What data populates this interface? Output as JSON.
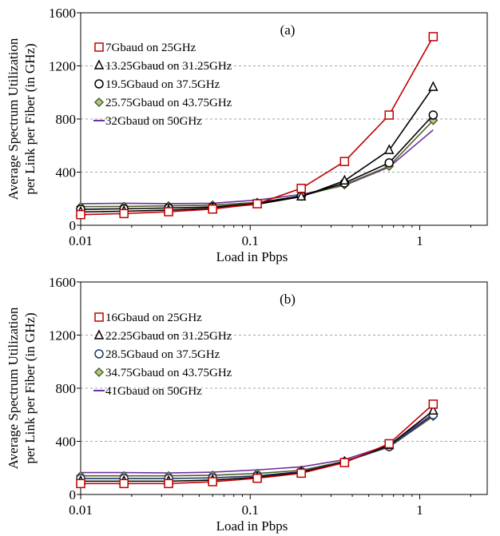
{
  "chart_data": [
    {
      "type": "line",
      "panel_label": "(a)",
      "xlabel": "Load in Pbps",
      "ylabel_line1": "Average Spectrum Utilization",
      "ylabel_line2": "per Link per Fiber (in GHz)",
      "x_scale": "log",
      "xlim": [
        0.01,
        2.5
      ],
      "ylim": [
        0,
        1600
      ],
      "x_ticks": [
        {
          "value": 0.01,
          "label": "0.01"
        },
        {
          "value": 0.1,
          "label": "0.1"
        },
        {
          "value": 1,
          "label": "1"
        }
      ],
      "y_ticks": [
        {
          "value": 0,
          "label": "0"
        },
        {
          "value": 400,
          "label": "400"
        },
        {
          "value": 800,
          "label": "800"
        },
        {
          "value": 1200,
          "label": "1200"
        },
        {
          "value": 1600,
          "label": "1600"
        }
      ],
      "grid": "horizontal-dashed",
      "legend_placement": "top-left",
      "x": [
        0.01,
        0.018,
        0.033,
        0.06,
        0.11,
        0.2,
        0.36,
        0.66,
        1.2
      ],
      "series": [
        {
          "name": "7Gbaud on 25GHz",
          "color": "#c00000",
          "marker": "square",
          "values": [
            80,
            88,
            102,
            122,
            162,
            278,
            480,
            830,
            1420
          ]
        },
        {
          "name": "13.25Gbaud on 31.25GHz",
          "color": "#000000",
          "marker": "triangle",
          "values": [
            100,
            106,
            114,
            128,
            158,
            215,
            335,
            565,
            1040
          ]
        },
        {
          "name": "19.5Gbaud on 37.5GHz",
          "color": "#000000",
          "marker": "circle",
          "values": [
            120,
            124,
            130,
            138,
            165,
            220,
            318,
            470,
            830
          ]
        },
        {
          "name": "25.75Gbaud on 43.75GHz",
          "color": "#4f6228",
          "marker": "diamond",
          "values": [
            140,
            142,
            146,
            152,
            172,
            220,
            305,
            445,
            790
          ]
        },
        {
          "name": "32Gbaud on 50GHz",
          "color": "#7030a0",
          "marker": "none",
          "values": [
            162,
            166,
            163,
            166,
            190,
            232,
            300,
            438,
            718
          ]
        }
      ]
    },
    {
      "type": "line",
      "panel_label": "(b)",
      "xlabel": "Load in Pbps",
      "ylabel_line1": "Average Spectrum Utilization",
      "ylabel_line2": "per Link per Fiber (in GHz)",
      "x_scale": "log",
      "xlim": [
        0.01,
        2.5
      ],
      "ylim": [
        0,
        1600
      ],
      "x_ticks": [
        {
          "value": 0.01,
          "label": "0.01"
        },
        {
          "value": 0.1,
          "label": "0.1"
        },
        {
          "value": 1,
          "label": "1"
        }
      ],
      "y_ticks": [
        {
          "value": 0,
          "label": "0"
        },
        {
          "value": 400,
          "label": "400"
        },
        {
          "value": 800,
          "label": "800"
        },
        {
          "value": 1200,
          "label": "1200"
        },
        {
          "value": 1600,
          "label": "1600"
        }
      ],
      "grid": "horizontal-dashed",
      "legend_placement": "top-left",
      "x": [
        0.01,
        0.018,
        0.033,
        0.06,
        0.11,
        0.2,
        0.36,
        0.66,
        1.2
      ],
      "series": [
        {
          "name": "16Gbaud on 25GHz",
          "color": "#c00000",
          "marker": "square",
          "values": [
            82,
            82,
            82,
            96,
            122,
            160,
            240,
            382,
            680
          ]
        },
        {
          "name": "22.25Gbaud on 31.25GHz",
          "color": "#000000",
          "marker": "triangle",
          "values": [
            100,
            100,
            100,
            108,
            130,
            165,
            245,
            370,
            630
          ]
        },
        {
          "name": "28.5Gbaud on 37.5GHz",
          "color": "#1f3864",
          "marker": "circle",
          "values": [
            120,
            120,
            120,
            125,
            140,
            172,
            245,
            360,
            600
          ]
        },
        {
          "name": "34.75Gbaud on 43.75GHz",
          "color": "#4f6228",
          "marker": "diamond",
          "values": [
            140,
            140,
            140,
            145,
            158,
            182,
            250,
            358,
            588
          ]
        },
        {
          "name": "41Gbaud on 50GHz",
          "color": "#7030a0",
          "marker": "none",
          "values": [
            165,
            165,
            162,
            168,
            185,
            208,
            262,
            372,
            608
          ]
        }
      ]
    }
  ]
}
